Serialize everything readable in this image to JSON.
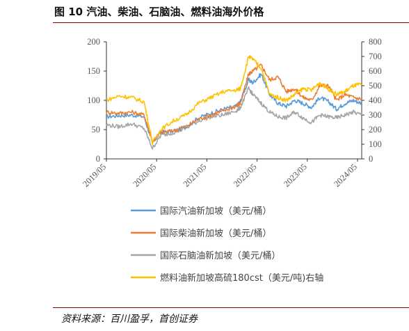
{
  "figure": {
    "title": "图 10 汽油、柴油、石脑油、燃料油海外价格",
    "source": "资料来源：百川盈孚，首创证券"
  },
  "chart_data": {
    "type": "line",
    "x": [
      "2019/05",
      "2019/08",
      "2019/11",
      "2020/02",
      "2020/04",
      "2020/06",
      "2020/09",
      "2020/12",
      "2021/03",
      "2021/06",
      "2021/09",
      "2021/12",
      "2022/01",
      "2022/03",
      "2022/04",
      "2022/06",
      "2022/08",
      "2022/10",
      "2022/12",
      "2023/02",
      "2023/04",
      "2023/06",
      "2023/08",
      "2023/10",
      "2023/12",
      "2024/02",
      "2024/04",
      "2024/06"
    ],
    "x_ticks": [
      "2019/05",
      "2020/05",
      "2021/05",
      "2022/05",
      "2023/05",
      "2024/05"
    ],
    "y_left": {
      "ylim": [
        0,
        200
      ],
      "ticks": [
        "0",
        "50",
        "100",
        "150",
        "200"
      ]
    },
    "y_right": {
      "ylim": [
        0,
        800
      ],
      "ticks": [
        "0",
        "100",
        "200",
        "300",
        "400",
        "500",
        "600",
        "700",
        "800"
      ]
    },
    "series": [
      {
        "name": "国际汽油新加坡（美元/桶）",
        "color": "#5B9BD5",
        "axis": "left",
        "values": [
          72,
          74,
          75,
          72,
          27,
          46,
          47,
          55,
          70,
          78,
          85,
          90,
          98,
          135,
          130,
          145,
          110,
          95,
          90,
          100,
          95,
          88,
          105,
          98,
          85,
          95,
          100,
          95
        ]
      },
      {
        "name": "国际柴油新加坡（美元/桶）",
        "color": "#ED7D31",
        "axis": "left",
        "values": [
          80,
          78,
          80,
          75,
          30,
          45,
          48,
          55,
          68,
          75,
          82,
          90,
          95,
          145,
          150,
          160,
          135,
          140,
          115,
          120,
          105,
          100,
          125,
          125,
          100,
          110,
          105,
          102
        ]
      },
      {
        "name": "国际石脑油新加坡（美元/桶）",
        "color": "#A5A5A5",
        "axis": "left",
        "values": [
          58,
          55,
          60,
          52,
          18,
          40,
          45,
          52,
          65,
          72,
          75,
          82,
          88,
          120,
          110,
          95,
          80,
          72,
          70,
          80,
          70,
          62,
          75,
          72,
          70,
          75,
          80,
          75
        ]
      },
      {
        "name": "燃料油新加坡高硫180cst（美元/吨)右轴",
        "color": "#FFC000",
        "axis": "right",
        "values": [
          400,
          430,
          420,
          390,
          110,
          200,
          260,
          300,
          380,
          420,
          460,
          470,
          480,
          700,
          680,
          620,
          440,
          420,
          400,
          440,
          480,
          470,
          520,
          480,
          440,
          460,
          500,
          510
        ]
      }
    ]
  }
}
